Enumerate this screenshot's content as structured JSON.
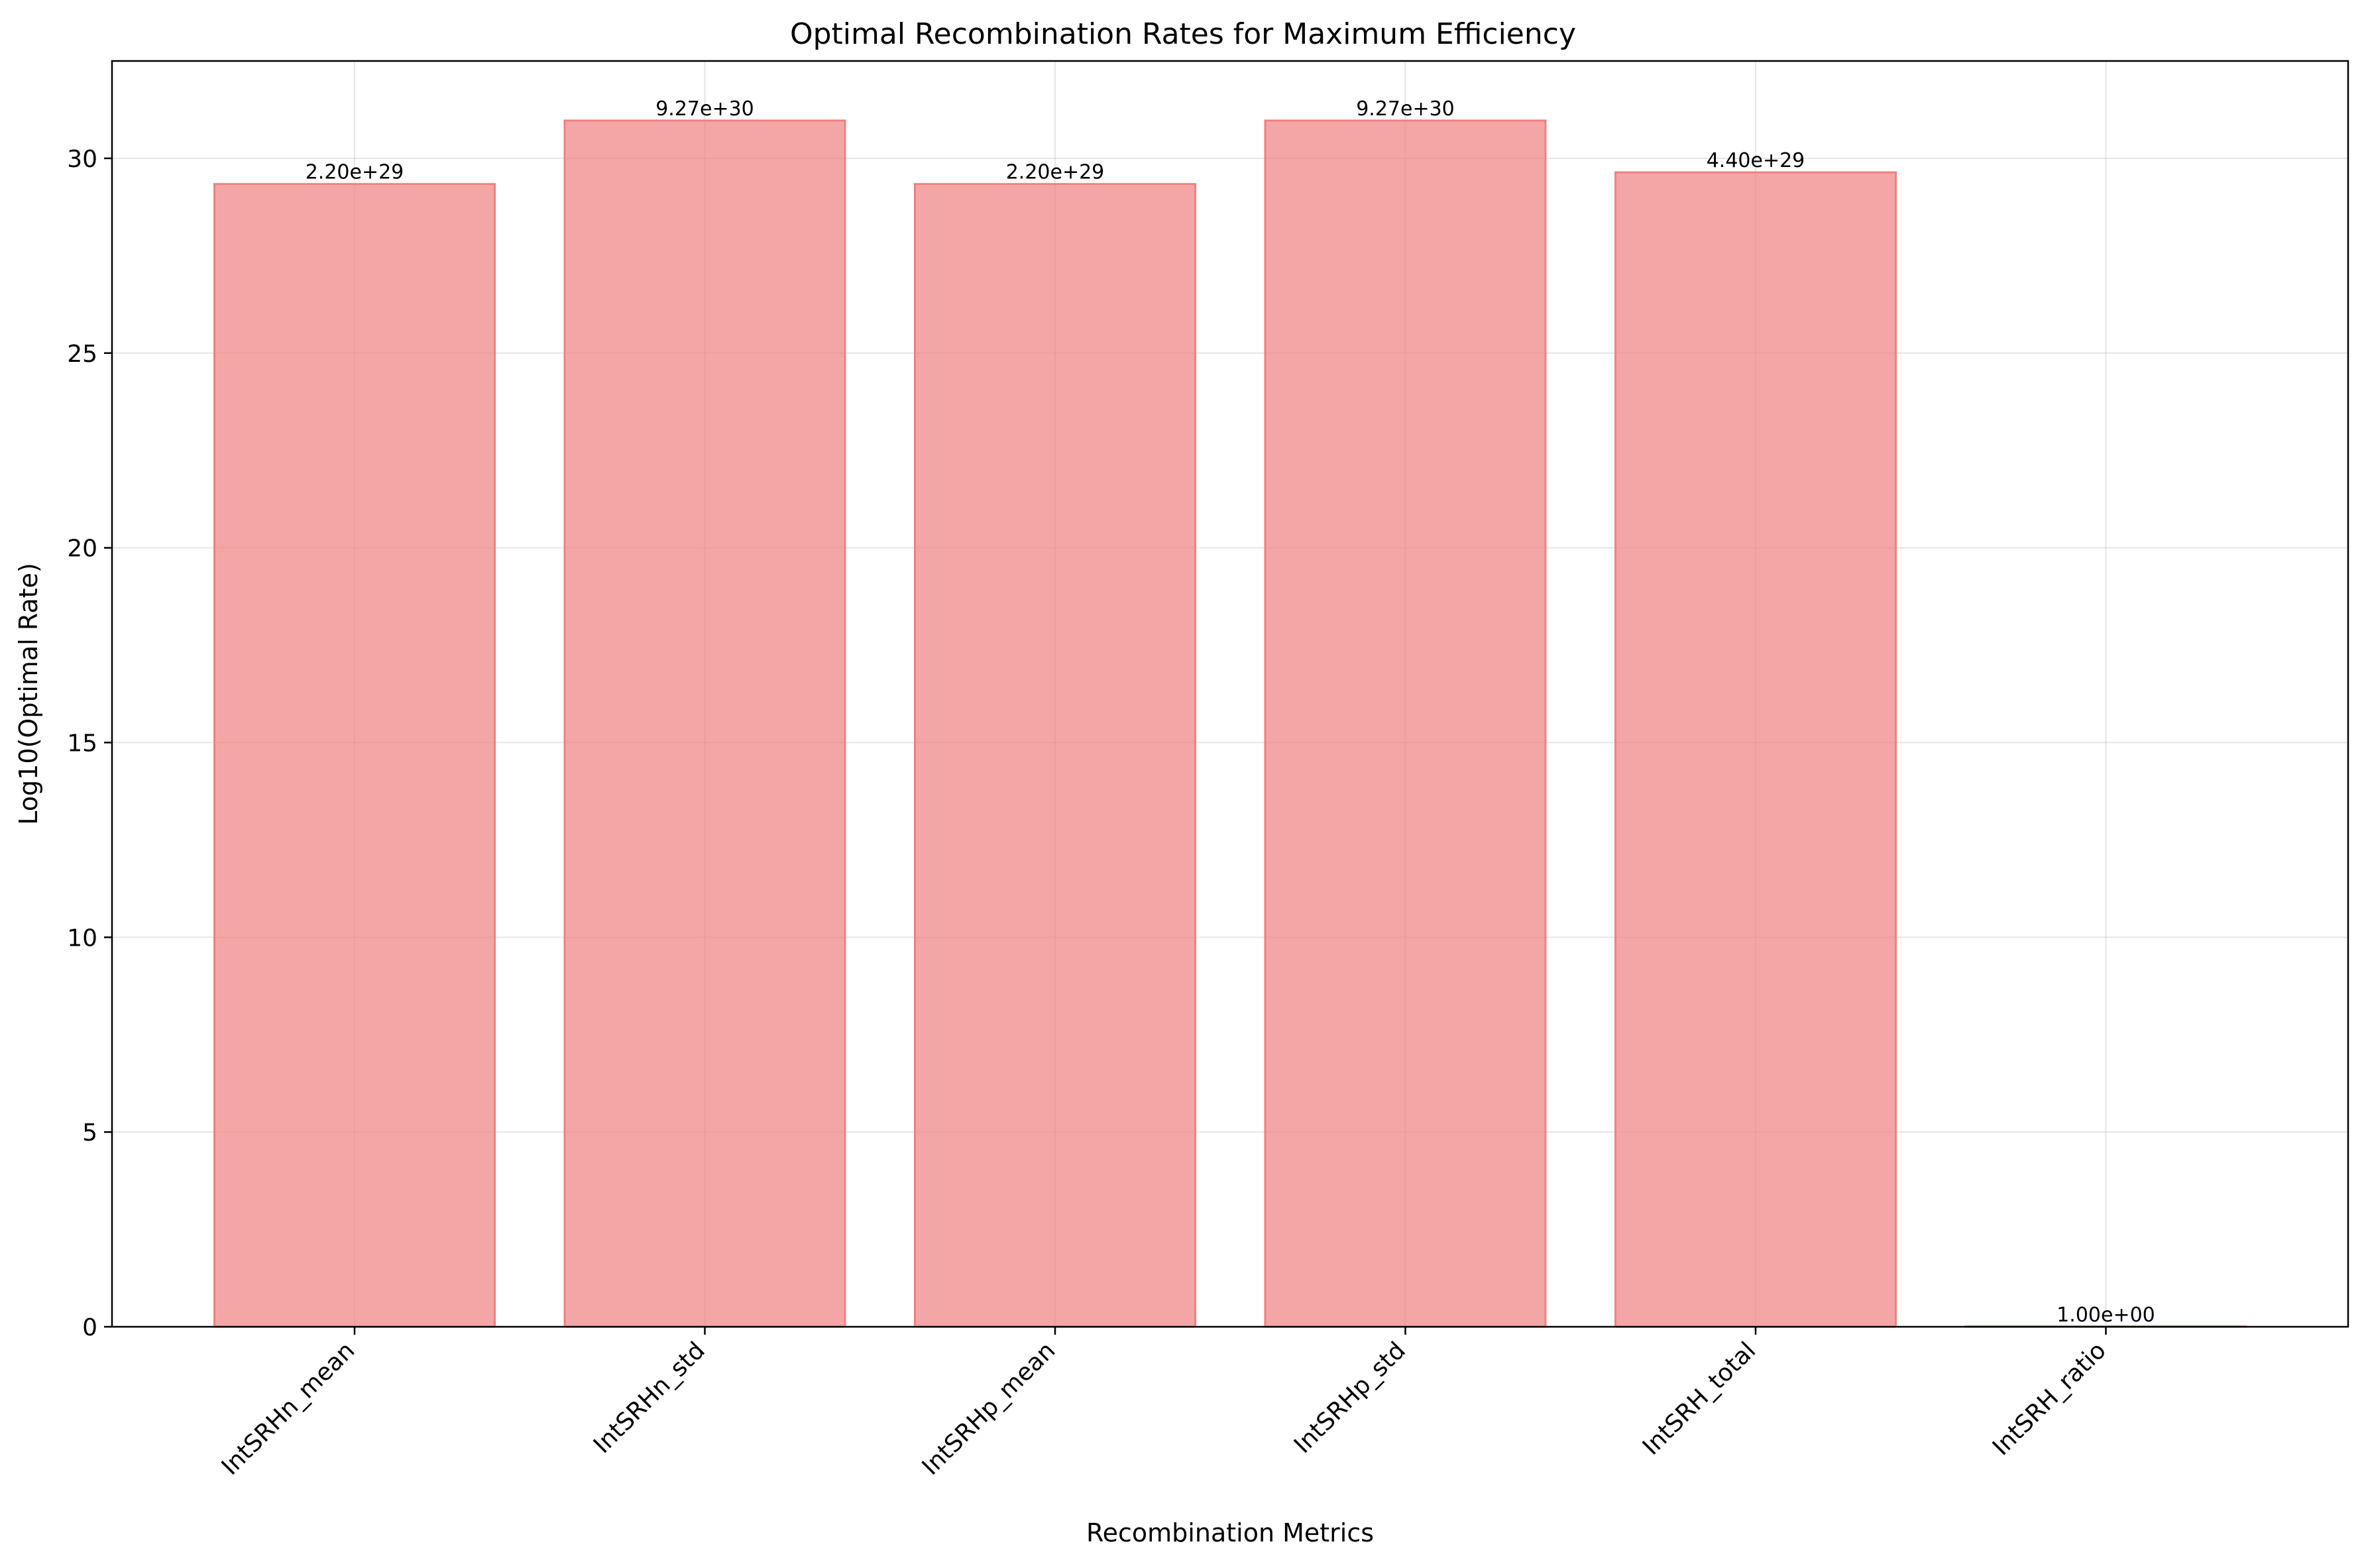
{
  "chart_data": {
    "type": "bar",
    "title": "Optimal Recombination Rates for Maximum Efficiency",
    "xlabel": "Recombination Metrics",
    "ylabel": "Log10(Optimal Rate)",
    "categories": [
      "IntSRHn_mean",
      "IntSRHn_std",
      "IntSRHp_mean",
      "IntSRHp_std",
      "IntSRH_total",
      "IntSRH_ratio"
    ],
    "values": [
      29.34,
      30.97,
      29.34,
      30.97,
      29.64,
      0.0
    ],
    "data_labels": [
      "2.20e+29",
      "9.27e+30",
      "2.20e+29",
      "9.27e+30",
      "4.40e+29",
      "1.00e+00"
    ],
    "ylim": [
      0,
      32.5
    ],
    "yticks": [
      0,
      5,
      10,
      15,
      20,
      25,
      30
    ],
    "grid": true,
    "bar_color": "#f08080"
  }
}
